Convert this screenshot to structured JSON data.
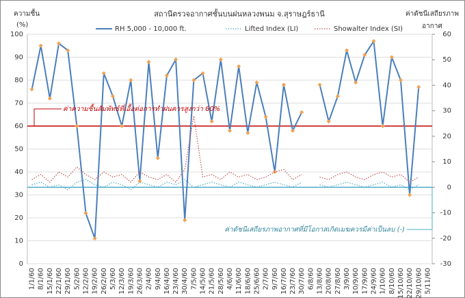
{
  "chart_data": {
    "type": "line",
    "title": "สถานีตรวจอากาศชั้นบนฝนหลวงพนม  จ.สุราษฎร์ธานี",
    "y_label_lines": [
      "ความชื้น",
      "(%)"
    ],
    "y2_label_lines": [
      "ค่าดัชนีเสถียรภาพ",
      "อากาศ"
    ],
    "categories": [
      "1/1/60",
      "8/1/60",
      "15/1/60",
      "22/1/60",
      "29/1/60",
      "5/2/60",
      "12/2/60",
      "19/2/60",
      "26/2/60",
      "5/3/60",
      "12/3/60",
      "19/3/60",
      "26/3/60",
      "2/4/60",
      "9/4/60",
      "16/4/60",
      "23/4/60",
      "30/4/60",
      "7/5/60",
      "14/5/60",
      "21/5/60",
      "28/5/60",
      "4/6/60",
      "11/6/60",
      "18/6/60",
      "25/6/60",
      "2/7/60",
      "9/7/60",
      "16/7/60",
      "23/7/60",
      "30/7/60",
      "6/8/60",
      "13/8/60",
      "20/8/60",
      "27/8/60",
      "3/9/60",
      "10/9/60",
      "17/9/60",
      "24/9/60",
      "1/10/60",
      "8/10/60",
      "15/10/60",
      "22/10/60",
      "29/10/60",
      "5/11/60"
    ],
    "series": [
      {
        "name": "RH 5,000 - 10,000 ft.",
        "color": "#4a7ebb",
        "marker_color": "#f0a050",
        "axis": "y",
        "values": [
          76,
          95,
          72,
          96,
          93,
          60,
          22,
          11,
          83,
          73,
          60,
          80,
          36,
          88,
          46,
          82,
          89,
          19,
          80,
          83,
          62,
          89,
          58,
          86,
          57,
          79,
          64,
          40,
          78,
          58,
          66,
          null,
          78,
          62,
          73,
          93,
          79,
          91,
          97,
          60,
          90,
          80,
          30,
          77,
          null
        ]
      },
      {
        "name": "Lifted Index (LI)",
        "color": "#4bacc6",
        "axis": "y2",
        "values": [
          1,
          2,
          0,
          1,
          -1,
          2,
          3,
          1,
          0,
          2,
          1,
          -1,
          2,
          1,
          0,
          2,
          1,
          3,
          0,
          1,
          2,
          1,
          0,
          2,
          1,
          0,
          1,
          2,
          1,
          0,
          2,
          null,
          1,
          0,
          1,
          2,
          1,
          0,
          1,
          2,
          0,
          1,
          -1,
          1,
          null
        ]
      },
      {
        "name": "Showalter Index (SI)",
        "color": "#c0504d",
        "axis": "y2",
        "values": [
          3,
          5,
          2,
          6,
          4,
          8,
          5,
          3,
          6,
          4,
          5,
          2,
          6,
          4,
          3,
          5,
          2,
          7,
          28,
          4,
          5,
          3,
          6,
          4,
          5,
          3,
          4,
          6,
          7,
          3,
          5,
          null,
          4,
          3,
          5,
          6,
          4,
          3,
          5,
          6,
          4,
          5,
          2,
          4,
          null
        ]
      }
    ],
    "reference_lines": [
      {
        "axis": "y",
        "value": 60,
        "color": "#c00000",
        "label": "ค่าความชื้นสัมพัทธ์ที่เอื้อต่อการทำฝนควรสูงกว่า 60%"
      },
      {
        "axis": "y2",
        "value": 0,
        "color": "#4bacc6",
        "label": "ค่าดัชนีเสถียรภาพอากาศที่มีโอกาสเกิดเมฆควรมีค่าเป็นลบ (-)"
      }
    ],
    "ylim": [
      0,
      100
    ],
    "yticks": [
      0,
      10,
      20,
      30,
      40,
      50,
      60,
      70,
      80,
      90,
      100
    ],
    "y2lim": [
      -30,
      60
    ],
    "y2ticks": [
      -30,
      -20,
      -10,
      0,
      10,
      20,
      30,
      40,
      50,
      60
    ],
    "grid": true
  }
}
